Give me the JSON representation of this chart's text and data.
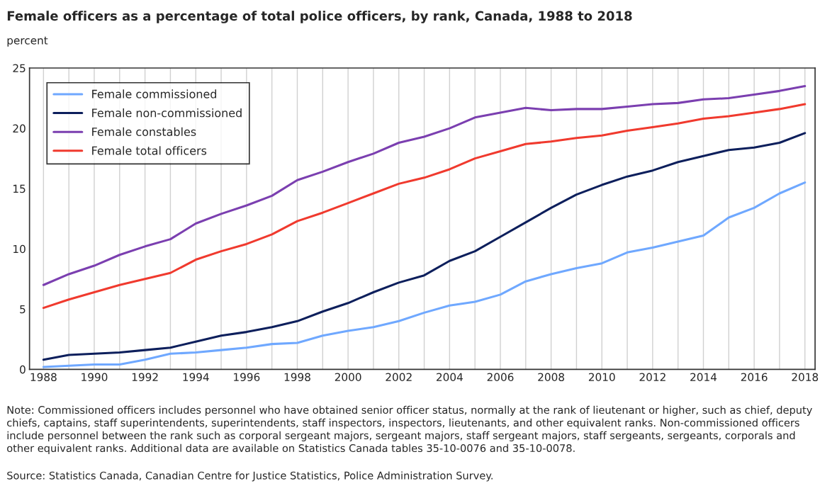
{
  "chart_data": {
    "type": "line",
    "title": "Female officers as a percentage of total police officers, by rank, Canada, 1988 to 2018",
    "ylabel": "percent",
    "x": [
      1988,
      1989,
      1990,
      1991,
      1992,
      1993,
      1994,
      1995,
      1996,
      1997,
      1998,
      1999,
      2000,
      2001,
      2002,
      2003,
      2004,
      2005,
      2006,
      2007,
      2008,
      2009,
      2010,
      2011,
      2012,
      2013,
      2014,
      2015,
      2016,
      2017,
      2018
    ],
    "series": [
      {
        "name": "Female commissioned",
        "color": "#6fa8ff",
        "values": [
          0.2,
          0.3,
          0.4,
          0.4,
          0.8,
          1.3,
          1.4,
          1.6,
          1.8,
          2.1,
          2.2,
          2.8,
          3.2,
          3.5,
          4.0,
          4.7,
          5.3,
          5.6,
          6.2,
          7.3,
          7.9,
          8.4,
          8.8,
          9.7,
          10.1,
          10.6,
          11.1,
          12.6,
          13.4,
          14.6,
          15.5
        ]
      },
      {
        "name": "Female non-commissioned",
        "color": "#0d1f5c",
        "values": [
          0.8,
          1.2,
          1.3,
          1.4,
          1.6,
          1.8,
          2.3,
          2.8,
          3.1,
          3.5,
          4.0,
          4.8,
          5.5,
          6.4,
          7.2,
          7.8,
          9.0,
          9.8,
          11.0,
          12.2,
          13.4,
          14.5,
          15.3,
          16.0,
          16.5,
          17.2,
          17.7,
          18.2,
          18.4,
          18.8,
          19.6
        ]
      },
      {
        "name": "Female constables",
        "color": "#7b3fb0",
        "values": [
          7.0,
          7.9,
          8.6,
          9.5,
          10.2,
          10.8,
          12.1,
          12.9,
          13.6,
          14.4,
          15.7,
          16.4,
          17.2,
          17.9,
          18.8,
          19.3,
          20.0,
          20.9,
          21.3,
          21.7,
          21.5,
          21.6,
          21.6,
          21.8,
          22.0,
          22.1,
          22.4,
          22.5,
          22.8,
          23.1,
          23.5
        ]
      },
      {
        "name": "Female total officers",
        "color": "#f03a2e",
        "values": [
          5.1,
          5.8,
          6.4,
          7.0,
          7.5,
          8.0,
          9.1,
          9.8,
          10.4,
          11.2,
          12.3,
          13.0,
          13.8,
          14.6,
          15.4,
          15.9,
          16.6,
          17.5,
          18.1,
          18.7,
          18.9,
          19.2,
          19.4,
          19.8,
          20.1,
          20.4,
          20.8,
          21.0,
          21.3,
          21.6,
          22.0
        ]
      }
    ],
    "xlim": [
      1987.45,
      2018.4
    ],
    "xticks": [
      1988,
      {
        "value": 1989,
        "label": null
      },
      1990,
      {
        "value": 1991,
        "label": null
      },
      1992,
      {
        "value": 1993,
        "label": null
      },
      1994,
      {
        "value": 1995,
        "label": null
      },
      1996,
      {
        "value": 1997,
        "label": null
      },
      1998,
      {
        "value": 1999,
        "label": null
      },
      2000,
      {
        "value": 2001,
        "label": null
      },
      2002,
      {
        "value": 2003,
        "label": null
      },
      2004,
      {
        "value": 2005,
        "label": null
      },
      2006,
      {
        "value": 2007,
        "label": null
      },
      2008,
      {
        "value": 2009,
        "label": null
      },
      2010,
      {
        "value": 2011,
        "label": null
      },
      2012,
      {
        "value": 2013,
        "label": null
      },
      2014,
      {
        "value": 2015,
        "label": null
      },
      2016,
      {
        "value": 2017,
        "label": null
      },
      2018
    ],
    "ylim": [
      0,
      25
    ],
    "yticks": [
      0,
      5,
      10,
      15,
      20,
      25
    ],
    "grid": "x",
    "legend": "top left",
    "marker": "none",
    "line_style": "solid",
    "annotations": [
      "Note: Commissioned officers includes personnel who have obtained senior officer status, normally at the rank of lieutenant or higher, such as chief, deputy chiefs, captains, staff superintendents, superintendents, staff inspectors, inspectors, lieutenants, and other equivalent ranks. Non-commissioned officers include personnel between the rank such as corporal sergeant majors, sergeant majors, staff sergeant majors, staff sergeants, sergeants, corporals and other equivalent ranks. Additional data are available on Statistics Canada tables 35-10-0076 and 35-10-0078.",
      "Source: Statistics Canada, Canadian Centre for Justice Statistics, Police Administration Survey."
    ]
  }
}
